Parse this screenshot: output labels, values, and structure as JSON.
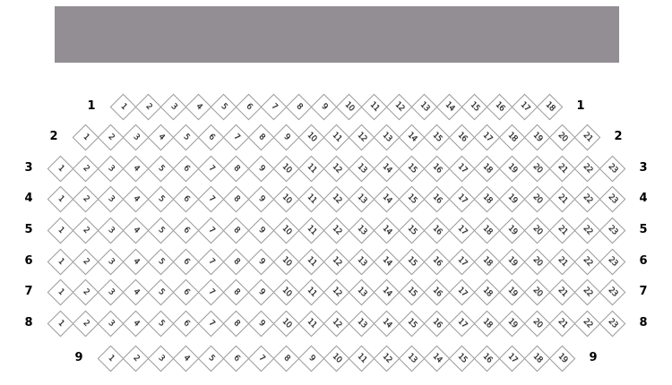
{
  "hall": {
    "stage": {
      "name": "stage"
    },
    "colors": {
      "stage": "#938e94",
      "seat_border": "#9c9c9c",
      "seat_fill": "#ffffff",
      "seat_number": "#141414",
      "row_label": "#000000",
      "background": "#ffffff"
    },
    "rows": [
      {
        "label": "1",
        "seats": [
          1,
          2,
          3,
          4,
          5,
          6,
          7,
          8,
          9,
          10,
          11,
          12,
          13,
          14,
          15,
          16,
          17,
          18
        ]
      },
      {
        "label": "2",
        "seats": [
          1,
          2,
          3,
          4,
          5,
          6,
          7,
          8,
          9,
          10,
          11,
          12,
          13,
          14,
          15,
          16,
          17,
          18,
          19,
          20,
          21
        ]
      },
      {
        "label": "3",
        "seats": [
          1,
          2,
          3,
          4,
          5,
          6,
          7,
          8,
          9,
          10,
          11,
          12,
          13,
          14,
          15,
          16,
          17,
          18,
          19,
          20,
          21,
          22,
          23
        ]
      },
      {
        "label": "4",
        "seats": [
          1,
          2,
          3,
          4,
          5,
          6,
          7,
          8,
          9,
          10,
          11,
          12,
          13,
          14,
          15,
          16,
          17,
          18,
          19,
          20,
          21,
          22,
          23
        ]
      },
      {
        "label": "5",
        "seats": [
          1,
          2,
          3,
          4,
          5,
          6,
          7,
          8,
          9,
          10,
          11,
          12,
          13,
          14,
          15,
          16,
          17,
          18,
          19,
          20,
          21,
          22,
          23
        ]
      },
      {
        "label": "6",
        "seats": [
          1,
          2,
          3,
          4,
          5,
          6,
          7,
          8,
          9,
          10,
          11,
          12,
          13,
          14,
          15,
          16,
          17,
          18,
          19,
          20,
          21,
          22,
          23
        ]
      },
      {
        "label": "7",
        "seats": [
          1,
          2,
          3,
          4,
          5,
          6,
          7,
          8,
          9,
          10,
          11,
          12,
          13,
          14,
          15,
          16,
          17,
          18,
          19,
          20,
          21,
          22,
          23
        ]
      },
      {
        "label": "8",
        "seats": [
          1,
          2,
          3,
          4,
          5,
          6,
          7,
          8,
          9,
          10,
          11,
          12,
          13,
          14,
          15,
          16,
          17,
          18,
          19,
          20,
          21,
          22,
          23
        ]
      },
      {
        "label": "9",
        "seats": [
          1,
          2,
          3,
          4,
          5,
          6,
          7,
          8,
          9,
          10,
          11,
          12,
          13,
          14,
          15,
          16,
          17,
          18,
          19
        ]
      }
    ]
  }
}
